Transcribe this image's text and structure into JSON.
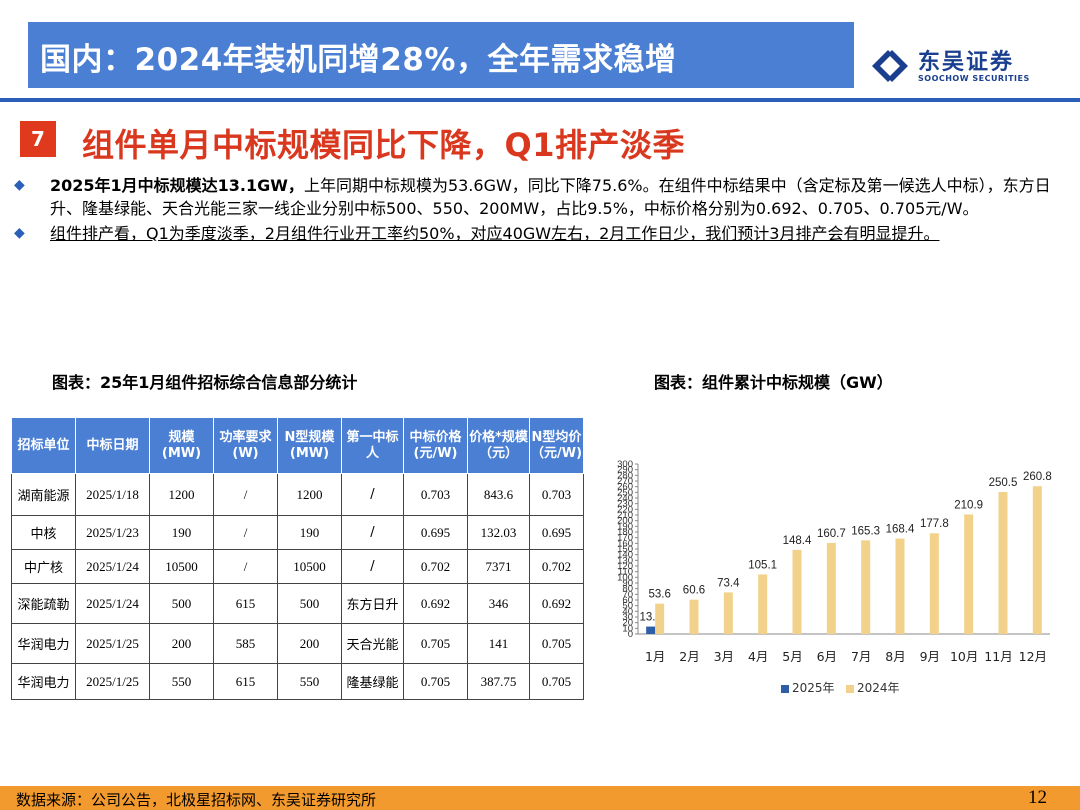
{
  "header": {
    "title": "国内：2024年装机同增28%，全年需求稳增",
    "logo_cn": "东吴证券",
    "logo_en": "SOOCHOW SECURITIES"
  },
  "section": {
    "number": "7",
    "title": "组件单月中标规模同比下降，Q1排产淡季"
  },
  "bullets": [
    {
      "lead": "2025年1月中标规模达13.1GW，",
      "text": "上年同期中标规模为53.6GW，同比下降75.6%。在组件中标结果中（含定标及第一候选人中标），东方日升、隆基绿能、天合光能三家一线企业分别中标500、550、200MW，占比9.5%，中标价格分别为0.692、0.705、0.705元/W。"
    },
    {
      "text": "组件排产看，Q1为季度淡季，2月组件行业开工率约50%，对应40GW左右，2月工作日少，我们预计3月排产会有明显提升。"
    }
  ],
  "table": {
    "caption": "图表：25年1月组件招标综合信息部分统计",
    "headers": [
      "招标单位",
      "中标日期",
      "规模(MW)",
      "功率要求(W)",
      "N型规模(MW)",
      "第一中标人",
      "中标价格(元/W)",
      "价格*规模（元）",
      "N型均价（元/W)"
    ],
    "rows": [
      [
        "湖南能源",
        "2025/1/18",
        "1200",
        "/",
        "1200",
        "/",
        "0.703",
        "843.6",
        "0.703"
      ],
      [
        "中核",
        "2025/1/23",
        "190",
        "/",
        "190",
        "/",
        "0.695",
        "132.03",
        "0.695"
      ],
      [
        "中广核",
        "2025/1/24",
        "10500",
        "/",
        "10500",
        "/",
        "0.702",
        "7371",
        "0.702"
      ],
      [
        "深能疏勒",
        "2025/1/24",
        "500",
        "615",
        "500",
        "东方日升",
        "0.692",
        "346",
        "0.692"
      ],
      [
        "华润电力",
        "2025/1/25",
        "200",
        "585",
        "200",
        "天合光能",
        "0.705",
        "141",
        "0.705"
      ],
      [
        "华润电力",
        "2025/1/25",
        "550",
        "615",
        "550",
        "隆基绿能",
        "0.705",
        "387.75",
        "0.705"
      ]
    ]
  },
  "chart_data": {
    "type": "bar",
    "title": "图表：组件累计中标规模（GW）",
    "categories": [
      "1月",
      "2月",
      "3月",
      "4月",
      "5月",
      "6月",
      "7月",
      "8月",
      "9月",
      "10月",
      "11月",
      "12月"
    ],
    "series": [
      {
        "name": "2025年",
        "color": "#2e5ea8",
        "values": [
          13.1,
          null,
          null,
          null,
          null,
          null,
          null,
          null,
          null,
          null,
          null,
          null
        ]
      },
      {
        "name": "2024年",
        "color": "#f2d28a",
        "values": [
          53.6,
          60.6,
          73.4,
          105.1,
          148.4,
          160.7,
          165.3,
          168.4,
          177.8,
          210.9,
          250.5,
          260.8
        ]
      }
    ],
    "ylim": [
      0,
      300
    ],
    "yticks": [
      0,
      10,
      20,
      30,
      40,
      50,
      60,
      70,
      80,
      90,
      100,
      110,
      120,
      130,
      140,
      150,
      160,
      170,
      180,
      190,
      200,
      210,
      220,
      230,
      240,
      250,
      260,
      270,
      280,
      290,
      300
    ],
    "grid": false,
    "legend": "bottom"
  },
  "footer": {
    "source": "数据来源：公司公告，北极星招标网、东吴证券研究所",
    "page": "12"
  }
}
